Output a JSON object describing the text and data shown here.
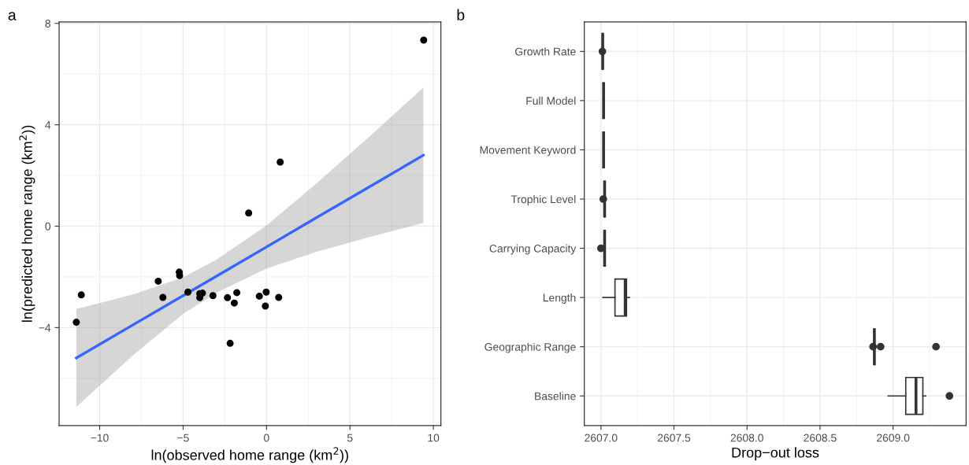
{
  "chart_data": [
    {
      "type": "scatter",
      "title": "a",
      "xlabel": "ln(observed home range (km$^{2}$))",
      "ylabel": "ln(predicted home range (km$^{2}$))",
      "xlim": [
        -12.43,
        10.45
      ],
      "ylim": [
        -7.86,
        8.06
      ],
      "xticks": [
        {
          "value": -10,
          "label": "−10"
        },
        {
          "value": -5,
          "label": "−5"
        },
        0,
        5,
        10
      ],
      "yticks": [
        {
          "value": -4,
          "label": "−4"
        },
        0,
        4,
        8
      ],
      "grid": true,
      "series": [
        {
          "type": "scatter",
          "marker": "circle",
          "color": "#000000",
          "x": [
            9.42,
            0.82,
            -1.07,
            -5.23,
            -5.21,
            -6.49,
            -11.1,
            -11.4,
            -6.21,
            -4.71,
            -4.0,
            -3.84,
            -4.0,
            -3.21,
            -2.34,
            -1.78,
            -1.93,
            -2.18,
            -0.43,
            -0.02,
            -0.07,
            0.73
          ],
          "values": [
            7.34,
            2.53,
            0.52,
            -1.81,
            -1.95,
            -2.17,
            -2.71,
            -3.79,
            -2.81,
            -2.6,
            -2.66,
            -2.64,
            -2.82,
            -2.74,
            -2.82,
            -2.62,
            -3.03,
            -4.62,
            -2.76,
            -2.6,
            -3.15,
            -2.81
          ]
        },
        {
          "type": "line",
          "color": "#3366ff",
          "x": [
            -11.4,
            -8,
            -5,
            -3,
            0,
            3,
            6,
            9.4
          ],
          "values": [
            -5.2,
            -3.89,
            -2.74,
            -1.97,
            -0.82,
            0.34,
            1.49,
            2.8
          ],
          "lower": [
            -7.13,
            -5.09,
            -3.46,
            -2.62,
            -1.67,
            -1.01,
            -0.46,
            0.13
          ],
          "upper": [
            -3.27,
            -2.69,
            -2.02,
            -1.32,
            0.03,
            1.69,
            3.44,
            5.47
          ]
        }
      ]
    },
    {
      "type": "box",
      "title": "b",
      "orientation": "horizontal",
      "xlabel": "Drop−out loss",
      "xlim": [
        2606.886,
        2609.5
      ],
      "xticks": [
        {
          "value": 2607,
          "label": "2607.0"
        },
        2607.5,
        {
          "value": 2608,
          "label": "2608.0"
        },
        2608.5,
        {
          "value": 2609,
          "label": "2609.0"
        }
      ],
      "grid": true,
      "categories": [
        "Growth Rate",
        "Full Model",
        "Movement Keyword",
        "Trophic Level",
        "Carrying Capacity",
        "Length",
        "Geographic Range",
        "Baseline"
      ],
      "boxes": [
        {
          "low": 2607.012,
          "q1": 2607.012,
          "median": 2607.012,
          "q3": 2607.012,
          "high": 2607.012,
          "outliers": [
            2607.01
          ]
        },
        {
          "low": 2607.018,
          "q1": 2607.018,
          "median": 2607.018,
          "q3": 2607.018,
          "high": 2607.018
        },
        {
          "low": 2607.018,
          "q1": 2607.018,
          "median": 2607.018,
          "q3": 2607.018,
          "high": 2607.018
        },
        {
          "low": 2607.025,
          "q1": 2607.025,
          "median": 2607.025,
          "q3": 2607.025,
          "high": 2607.025,
          "outliers": [
            2607.016
          ]
        },
        {
          "low": 2607.025,
          "q1": 2607.025,
          "median": 2607.025,
          "q3": 2607.025,
          "high": 2607.025,
          "outliers": [
            2607.0
          ]
        },
        {
          "low": 2607.013,
          "q1": 2607.096,
          "median": 2607.166,
          "q3": 2607.175,
          "high": 2607.195
        },
        {
          "low": 2608.872,
          "q1": 2608.872,
          "median": 2608.872,
          "q3": 2608.872,
          "high": 2608.872,
          "outliers": [
            2608.863,
            2608.915,
            2609.294
          ]
        },
        {
          "low": 2608.966,
          "q1": 2609.087,
          "median": 2609.157,
          "q3": 2609.204,
          "high": 2609.224,
          "outliers": [
            2609.386
          ]
        }
      ]
    }
  ]
}
